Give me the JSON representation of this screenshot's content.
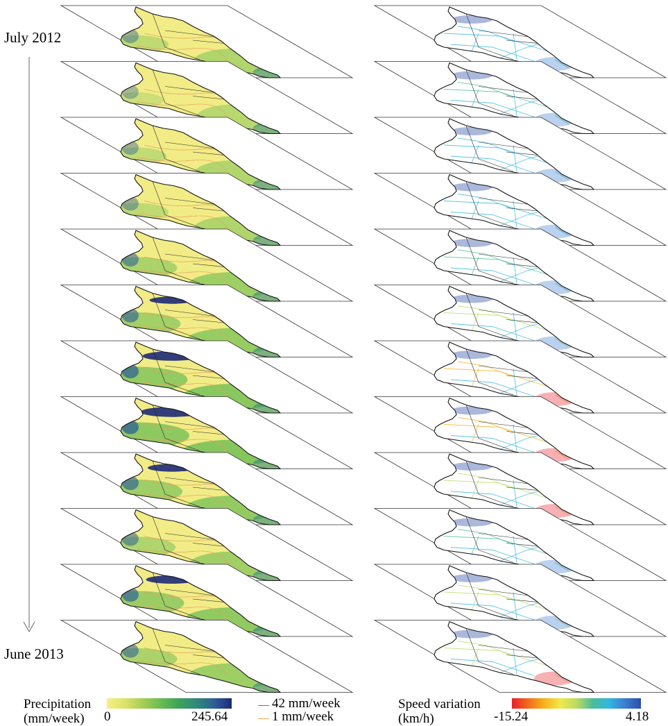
{
  "timeline": {
    "start_label": "July 2012",
    "end_label": "June 2013"
  },
  "precipitation_legend": {
    "title_line1": "Precipitation",
    "title_line2": "(mm/week)",
    "min_label": "0",
    "max_label": "245.64",
    "colors": [
      "#f5f086",
      "#dde36a",
      "#a6cf57",
      "#6bbd52",
      "#3da35a",
      "#2f8a7a",
      "#2e5f97",
      "#1e2a78"
    ]
  },
  "contour_legend": {
    "items": [
      {
        "label": "42 mm/week",
        "color": "#e84040"
      },
      {
        "label": "1 mm/week",
        "color": "#f0a860"
      }
    ]
  },
  "speed_legend": {
    "title_line1": "Speed variation",
    "title_line2": "(km/h)",
    "min_label": "-15.24",
    "max_label": "4.18",
    "colors": [
      "#e8202a",
      "#f26a1e",
      "#f7b31a",
      "#f2e84a",
      "#b9dc62",
      "#4dbb9a",
      "#32b7e0",
      "#3a7fd0",
      "#2d4ea8"
    ]
  },
  "layers": [
    {
      "precip_wet": 0.3,
      "speed_dev": 0.25
    },
    {
      "precip_wet": 0.15,
      "speed_dev": 0.35
    },
    {
      "precip_wet": 0.25,
      "speed_dev": 0.3
    },
    {
      "precip_wet": 0.3,
      "speed_dev": 0.3
    },
    {
      "precip_wet": 0.55,
      "speed_dev": 0.4
    },
    {
      "precip_wet": 0.65,
      "speed_dev": 0.45
    },
    {
      "precip_wet": 0.85,
      "speed_dev": 0.75
    },
    {
      "precip_wet": 0.9,
      "speed_dev": 0.7
    },
    {
      "precip_wet": 0.7,
      "speed_dev": 0.55
    },
    {
      "precip_wet": 0.5,
      "speed_dev": 0.35
    },
    {
      "precip_wet": 0.75,
      "speed_dev": 0.45
    },
    {
      "precip_wet": 0.55,
      "speed_dev": 0.55
    }
  ]
}
